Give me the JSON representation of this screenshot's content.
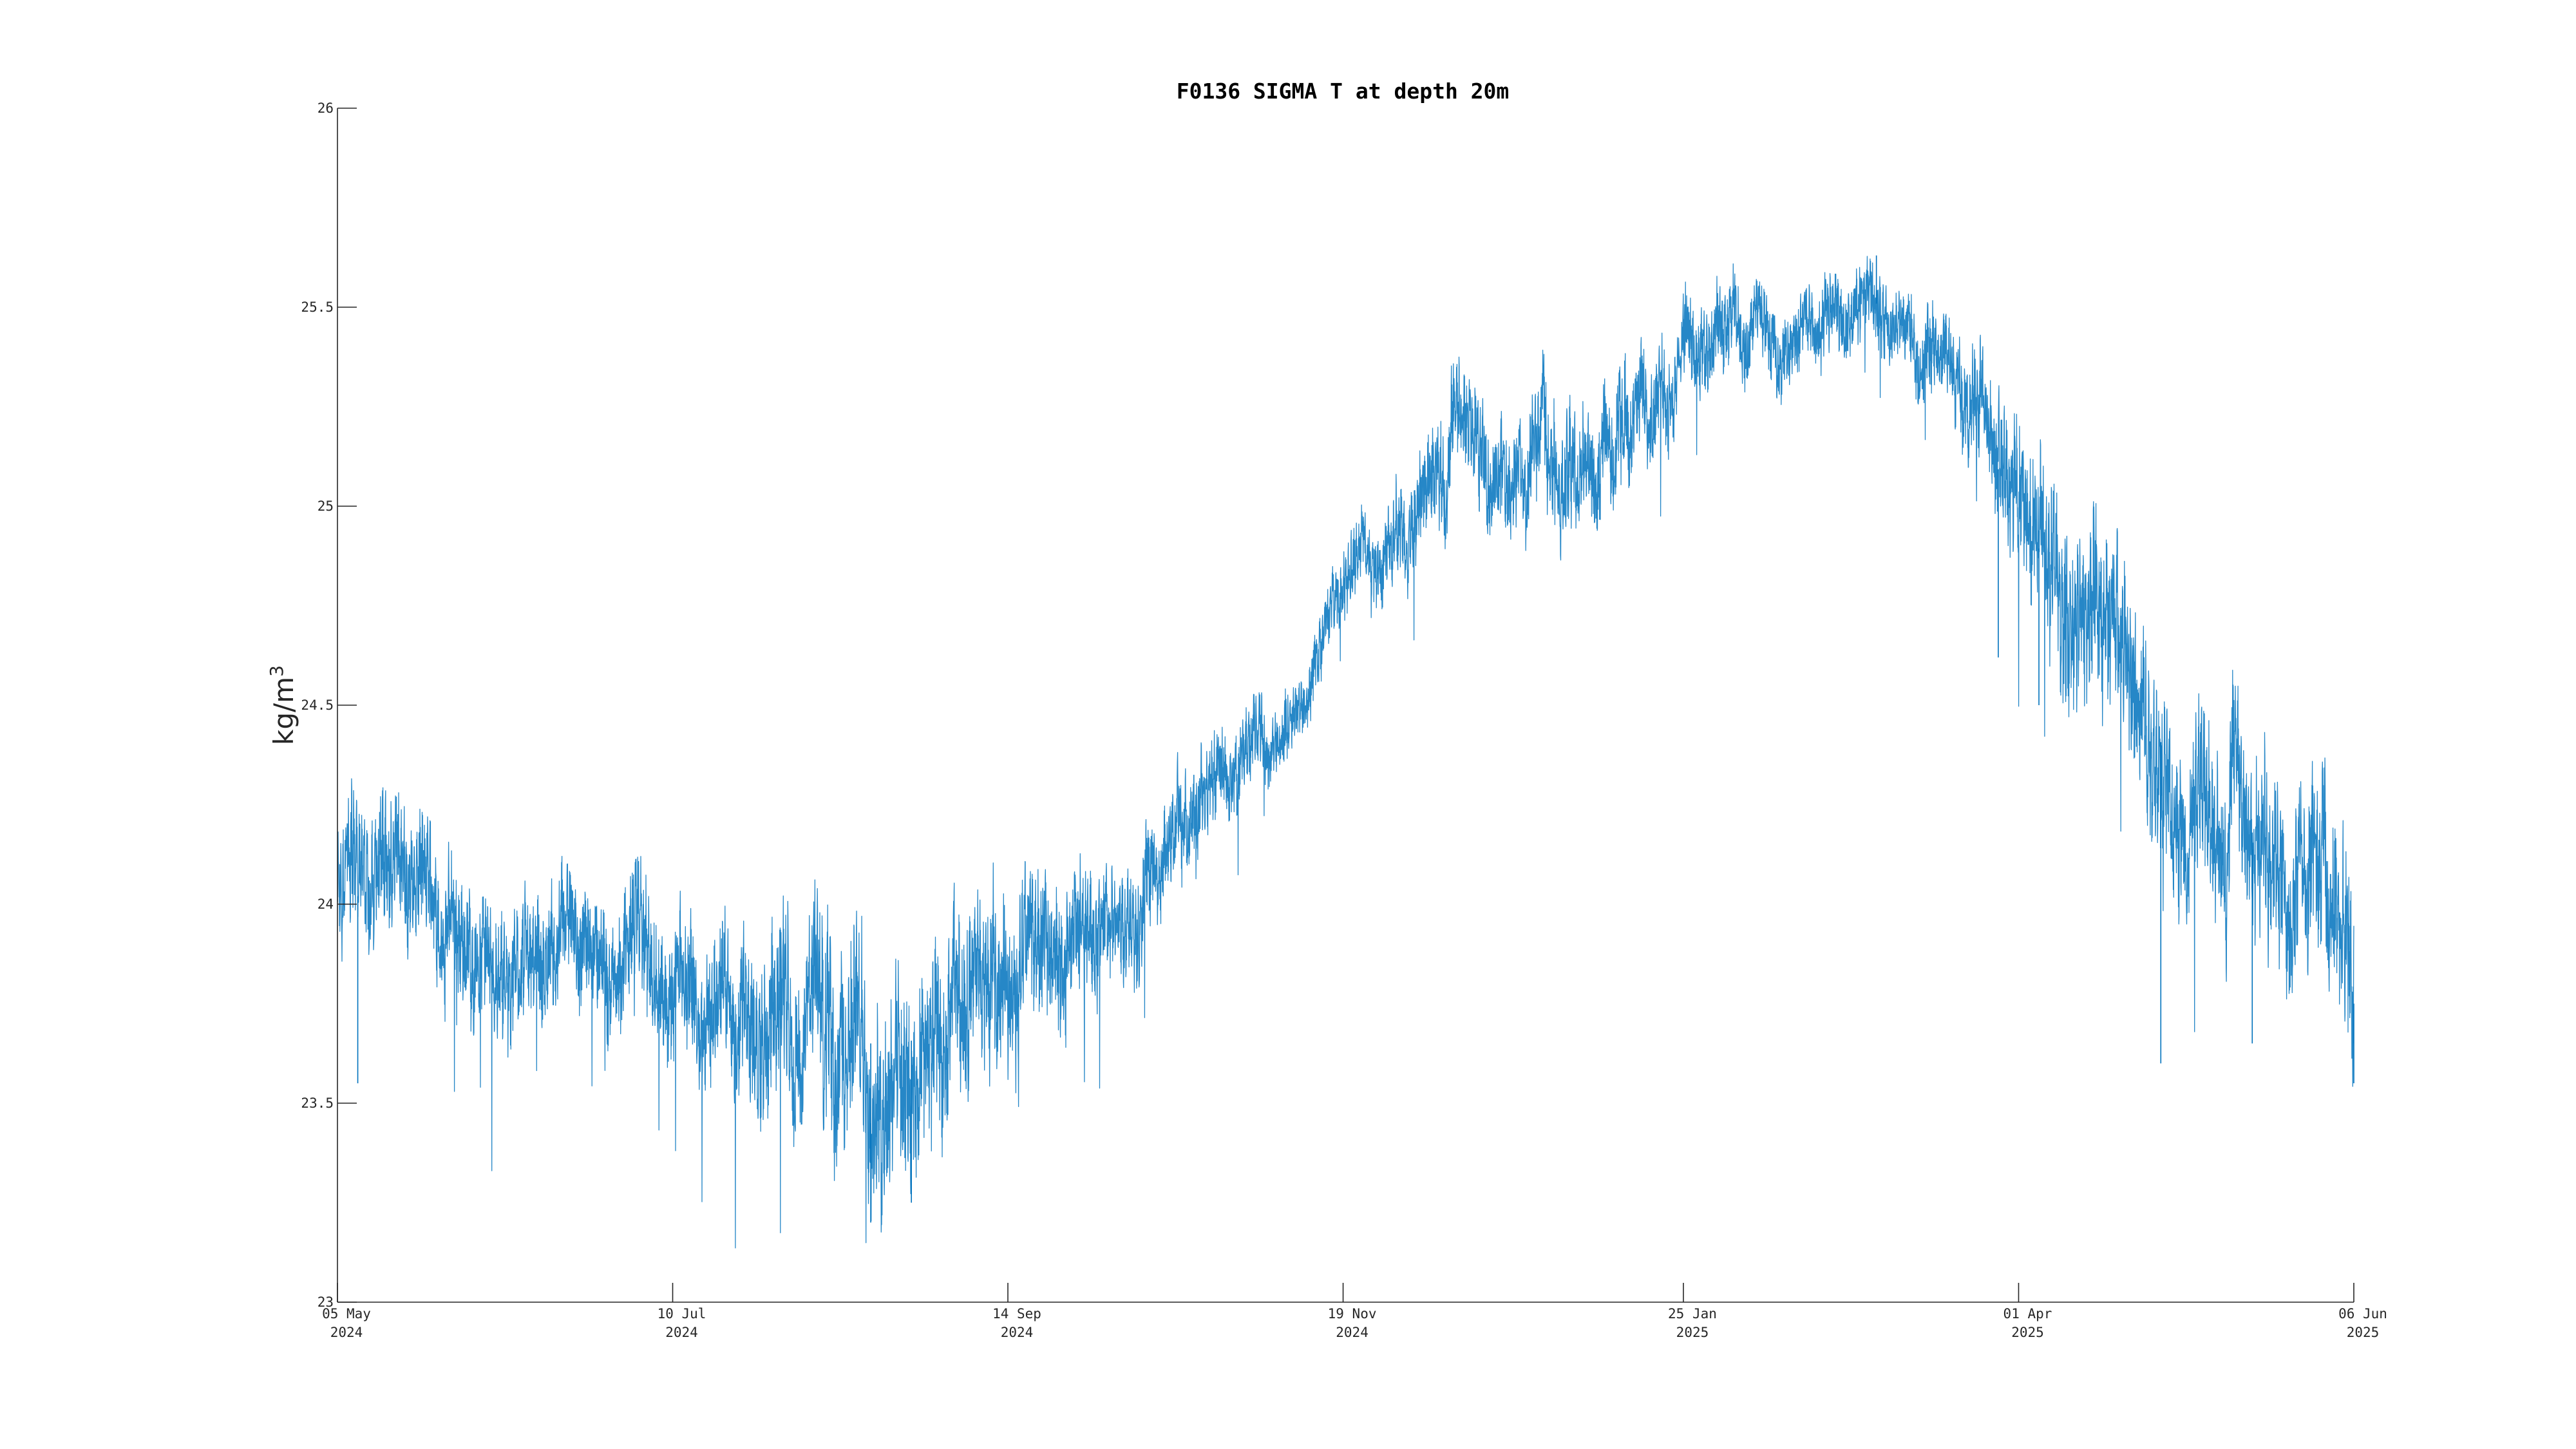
{
  "chart_data": {
    "type": "line",
    "title": "F0136 SIGMA T at depth 20m",
    "ylabel_base": "kg/m",
    "ylabel_sup": "3",
    "xlabel": "",
    "ylim": [
      23,
      26
    ],
    "xlim": [
      "2024-05-05",
      "2025-06-06"
    ],
    "grid": false,
    "legend": "none",
    "series_color": "#0072BD",
    "y_ticks": [
      {
        "value": 23,
        "label": "23"
      },
      {
        "value": 23.5,
        "label": "23.5"
      },
      {
        "value": 24,
        "label": "24"
      },
      {
        "value": 24.5,
        "label": "24.5"
      },
      {
        "value": 25,
        "label": "25"
      },
      {
        "value": 25.5,
        "label": "25.5"
      },
      {
        "value": 26,
        "label": "26"
      }
    ],
    "x_ticks": [
      {
        "date": "2024-05-05",
        "line1": "05 May",
        "line2": "2024"
      },
      {
        "date": "2024-07-10",
        "line1": "10 Jul",
        "line2": "2024"
      },
      {
        "date": "2024-09-14",
        "line1": "14 Sep",
        "line2": "2024"
      },
      {
        "date": "2024-11-19",
        "line1": "19 Nov",
        "line2": "2024"
      },
      {
        "date": "2025-01-25",
        "line1": "25 Jan",
        "line2": "2025"
      },
      {
        "date": "2025-04-01",
        "line1": "01 Apr",
        "line2": "2025"
      },
      {
        "date": "2025-06-06",
        "line1": "06 Jun",
        "line2": "2025"
      }
    ],
    "series": [
      {
        "trend": [
          [
            "2024-05-05",
            24.0
          ],
          [
            "2024-05-15",
            24.05
          ],
          [
            "2024-05-25",
            24.0
          ],
          [
            "2024-06-05",
            23.85
          ],
          [
            "2024-06-15",
            23.85
          ],
          [
            "2024-06-25",
            23.82
          ],
          [
            "2024-07-05",
            23.82
          ],
          [
            "2024-07-15",
            23.8
          ],
          [
            "2024-07-25",
            23.72
          ],
          [
            "2024-08-05",
            23.7
          ],
          [
            "2024-08-15",
            23.65
          ],
          [
            "2024-08-25",
            23.65
          ],
          [
            "2024-09-01",
            23.7
          ],
          [
            "2024-09-10",
            23.78
          ],
          [
            "2024-09-20",
            23.88
          ],
          [
            "2024-10-01",
            23.95
          ],
          [
            "2024-10-10",
            24.05
          ],
          [
            "2024-10-20",
            24.2
          ],
          [
            "2024-10-30",
            24.35
          ],
          [
            "2024-11-08",
            24.45
          ],
          [
            "2024-11-15",
            24.65
          ],
          [
            "2024-11-20",
            24.85
          ],
          [
            "2024-11-28",
            24.95
          ],
          [
            "2024-12-05",
            25.05
          ],
          [
            "2024-12-12",
            25.2
          ],
          [
            "2024-12-20",
            25.1
          ],
          [
            "2024-12-28",
            25.15
          ],
          [
            "2025-01-05",
            25.1
          ],
          [
            "2025-01-12",
            25.2
          ],
          [
            "2025-01-20",
            25.3
          ],
          [
            "2025-01-28",
            25.45
          ],
          [
            "2025-02-05",
            25.45
          ],
          [
            "2025-02-13",
            25.4
          ],
          [
            "2025-02-20",
            25.45
          ],
          [
            "2025-02-28",
            25.52
          ],
          [
            "2025-03-07",
            25.5
          ],
          [
            "2025-03-13",
            25.45
          ],
          [
            "2025-03-20",
            25.3
          ],
          [
            "2025-03-26",
            25.15
          ],
          [
            "2025-04-02",
            24.95
          ],
          [
            "2025-04-10",
            24.8
          ],
          [
            "2025-04-17",
            24.75
          ],
          [
            "2025-04-24",
            24.55
          ],
          [
            "2025-05-01",
            24.35
          ],
          [
            "2025-05-10",
            24.25
          ],
          [
            "2025-05-20",
            24.15
          ],
          [
            "2025-05-30",
            24.1
          ],
          [
            "2025-06-04",
            24.0
          ],
          [
            "2025-06-06",
            23.75
          ]
        ],
        "envelope": [
          [
            "2024-05-05",
            0.15
          ],
          [
            "2024-06-15",
            0.13
          ],
          [
            "2024-07-15",
            0.15
          ],
          [
            "2024-08-15",
            0.22
          ],
          [
            "2024-09-10",
            0.18
          ],
          [
            "2024-10-10",
            0.12
          ],
          [
            "2024-11-15",
            0.07
          ],
          [
            "2024-12-10",
            0.12
          ],
          [
            "2025-01-05",
            0.13
          ],
          [
            "2025-02-15",
            0.08
          ],
          [
            "2025-03-20",
            0.1
          ],
          [
            "2025-04-10",
            0.2
          ],
          [
            "2025-05-10",
            0.18
          ],
          [
            "2025-06-06",
            0.2
          ]
        ],
        "spikes": [
          [
            "2024-05-09",
            23.55
          ],
          [
            "2024-08-18",
            23.2
          ],
          [
            "2024-08-26",
            23.25
          ],
          [
            "2025-03-28",
            24.62
          ],
          [
            "2025-04-05",
            24.5
          ],
          [
            "2025-04-29",
            23.6
          ],
          [
            "2025-05-17",
            23.65
          ],
          [
            "2025-06-06",
            23.55
          ],
          [
            "2025-03-04",
            25.63
          ]
        ]
      }
    ]
  }
}
